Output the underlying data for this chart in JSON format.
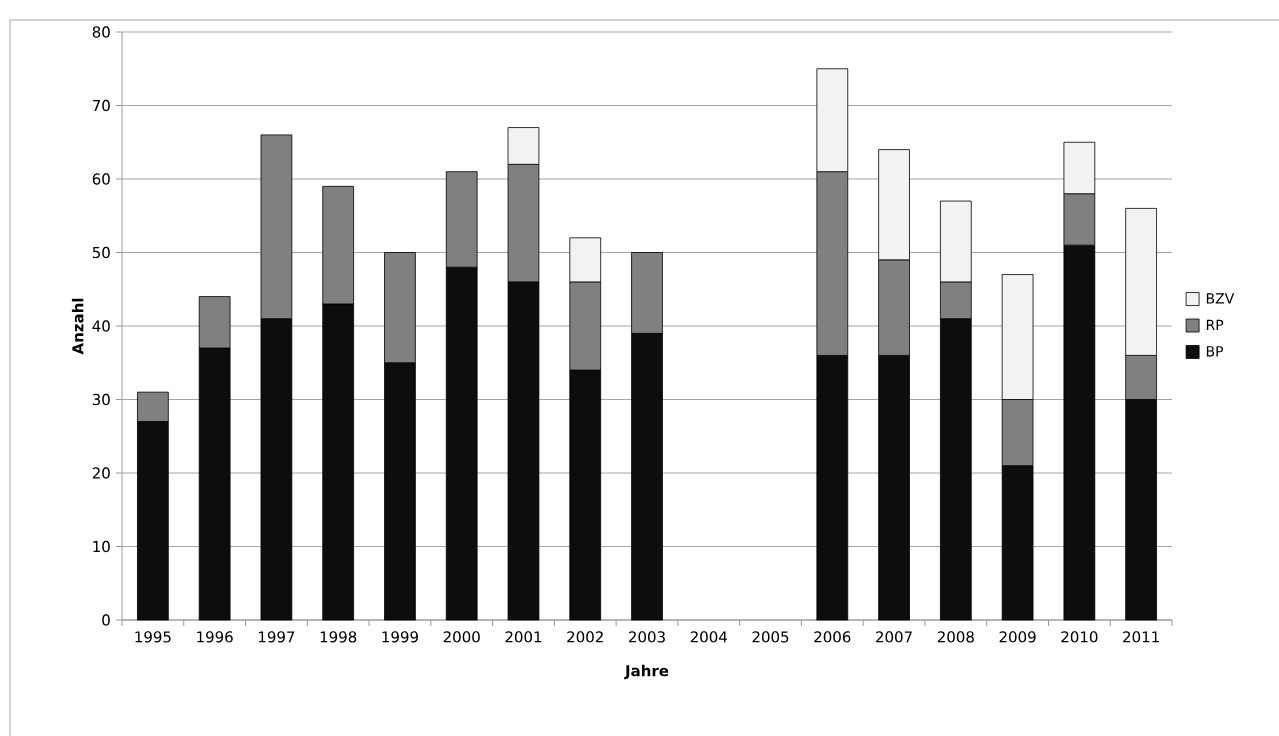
{
  "chart_data": {
    "type": "bar",
    "stacked": true,
    "xlabel": "Jahre",
    "ylabel": "Anzahl",
    "categories": [
      "1995",
      "1996",
      "1997",
      "1998",
      "1999",
      "2000",
      "2001",
      "2002",
      "2003",
      "2004",
      "2005",
      "2006",
      "2007",
      "2008",
      "2009",
      "2010",
      "2011"
    ],
    "series": [
      {
        "name": "BP",
        "color": "#0d0d0d",
        "values": [
          27,
          37,
          41,
          43,
          35,
          48,
          46,
          34,
          39,
          null,
          null,
          36,
          36,
          41,
          21,
          51,
          30
        ]
      },
      {
        "name": "RP",
        "color": "#808080",
        "values": [
          4,
          7,
          25,
          16,
          15,
          13,
          16,
          12,
          11,
          null,
          null,
          25,
          13,
          5,
          9,
          7,
          6
        ]
      },
      {
        "name": "BZV",
        "color": "#f2f2f2",
        "values": [
          null,
          null,
          null,
          null,
          null,
          null,
          5,
          6,
          null,
          null,
          null,
          14,
          15,
          11,
          17,
          7,
          20
        ]
      }
    ],
    "ylim": [
      0,
      80
    ],
    "yticks": [
      0,
      10,
      20,
      30,
      40,
      50,
      60,
      70,
      80
    ],
    "grid": "y",
    "legend": "right"
  }
}
